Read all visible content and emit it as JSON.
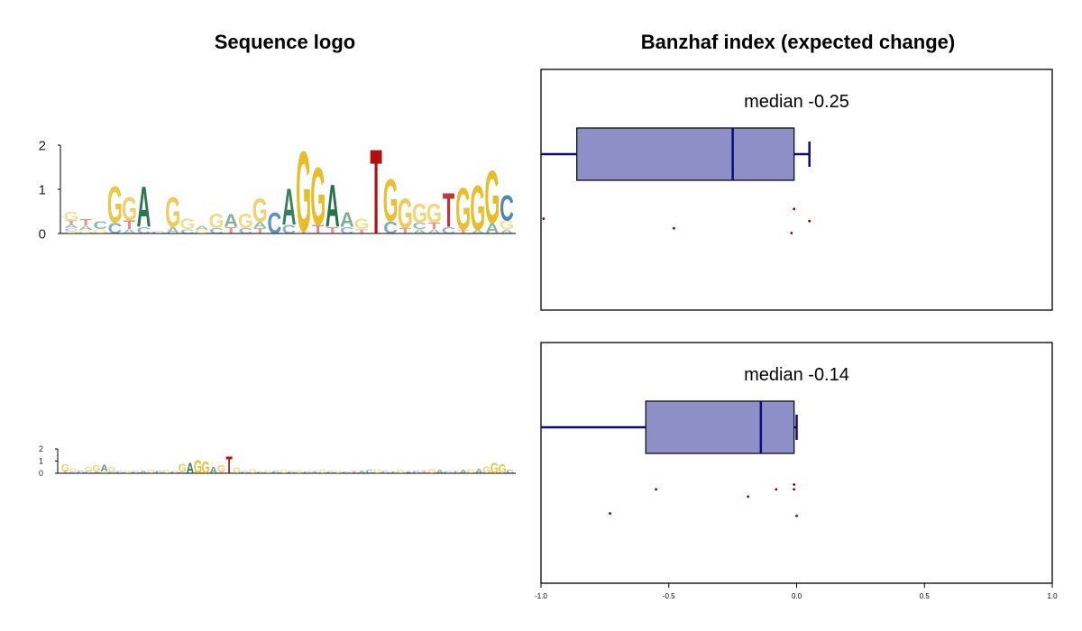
{
  "titles": {
    "left": "Sequence logo",
    "right": "Banzhaf index (expected change)"
  },
  "colors": {
    "A": "#1a6b3f",
    "C": "#0b5591",
    "G": "#e8bd2a",
    "T": "#b30f0f",
    "box_fill": "#8d8fc6",
    "box_line": "#0a0a7a",
    "point": "#8b0000"
  },
  "logo_top": {
    "yticks": [
      "0",
      "1",
      "2"
    ],
    "columns": [
      [
        [
          "G",
          0.2
        ],
        [
          "T",
          0.1
        ],
        [
          "A",
          0.08
        ],
        [
          "C",
          0.07
        ],
        [
          "G",
          0.05
        ]
      ],
      [
        [
          "T",
          0.15
        ],
        [
          "A",
          0.1
        ],
        [
          "G",
          0.08
        ]
      ],
      [
        [
          "C",
          0.18
        ],
        [
          "G",
          0.1
        ]
      ],
      [
        [
          "G",
          0.85
        ],
        [
          "C",
          0.25
        ]
      ],
      [
        [
          "G",
          0.55
        ],
        [
          "T",
          0.2
        ],
        [
          "A",
          0.1
        ]
      ],
      [
        [
          "A",
          0.95
        ],
        [
          "C",
          0.15
        ]
      ],
      [
        [
          "C",
          0.05
        ]
      ],
      [
        [
          "G",
          0.7
        ],
        [
          "A",
          0.15
        ]
      ],
      [
        [
          "G",
          0.25
        ],
        [
          "C",
          0.1
        ]
      ],
      [
        [
          "A",
          0.1
        ],
        [
          "G",
          0.08
        ]
      ],
      [
        [
          "G",
          0.35
        ],
        [
          "C",
          0.12
        ]
      ],
      [
        [
          "A",
          0.3
        ],
        [
          "T",
          0.15
        ]
      ],
      [
        [
          "G",
          0.35
        ],
        [
          "C",
          0.12
        ]
      ],
      [
        [
          "G",
          0.55
        ],
        [
          "A",
          0.15
        ],
        [
          "T",
          0.12
        ]
      ],
      [
        [
          "C",
          0.5
        ]
      ],
      [
        [
          "A",
          0.85
        ],
        [
          "C",
          0.2
        ]
      ],
      [
        [
          "G",
          1.9
        ],
        [
          "T",
          0.05
        ]
      ],
      [
        [
          "G",
          1.35
        ],
        [
          "T",
          0.2
        ]
      ],
      [
        [
          "A",
          1.0
        ],
        [
          "T",
          0.15
        ]
      ],
      [
        [
          "A",
          0.35
        ],
        [
          "C",
          0.15
        ]
      ],
      [
        [
          "G",
          0.25
        ],
        [
          "T",
          0.1
        ]
      ],
      [
        [
          "T",
          2.0
        ]
      ],
      [
        [
          "G",
          1.0
        ],
        [
          "C",
          0.28
        ]
      ],
      [
        [
          "G",
          0.7
        ],
        [
          "T",
          0.12
        ]
      ],
      [
        [
          "G",
          0.45
        ],
        [
          "C",
          0.15
        ],
        [
          "A",
          0.1
        ]
      ],
      [
        [
          "G",
          0.45
        ],
        [
          "T",
          0.15
        ],
        [
          "A",
          0.1
        ]
      ],
      [
        [
          "T",
          0.8
        ],
        [
          "C",
          0.15
        ]
      ],
      [
        [
          "G",
          1.0
        ],
        [
          "T",
          0.08
        ]
      ],
      [
        [
          "G",
          1.05
        ],
        [
          "A",
          0.08
        ]
      ],
      [
        [
          "G",
          1.25
        ],
        [
          "A",
          0.25
        ]
      ],
      [
        [
          "C",
          0.6
        ],
        [
          "G",
          0.2
        ],
        [
          "A",
          0.1
        ]
      ]
    ]
  },
  "logo_bottom": {
    "yticks": [
      "0",
      "1",
      "2"
    ],
    "columns": [
      [
        [
          "G",
          0.6
        ],
        [
          "T",
          0.2
        ]
      ],
      [
        [
          "G",
          0.3
        ],
        [
          "C",
          0.1
        ]
      ],
      [
        [
          "C",
          0.25
        ]
      ],
      [
        [
          "G",
          0.35
        ],
        [
          "C",
          0.2
        ]
      ],
      [
        [
          "G",
          0.55
        ],
        [
          "A",
          0.15
        ]
      ],
      [
        [
          "A",
          0.6
        ],
        [
          "G",
          0.15
        ]
      ],
      [
        [
          "G",
          0.4
        ],
        [
          "C",
          0.15
        ]
      ],
      [
        [
          "C",
          0.2
        ]
      ],
      [
        [
          "G",
          0.25
        ]
      ],
      [
        [
          "C",
          0.2
        ]
      ],
      [
        [
          "A",
          0.25
        ]
      ],
      [
        [
          "G",
          0.35
        ]
      ],
      [
        [
          "C",
          0.25
        ]
      ],
      [
        [
          "G",
          0.3
        ]
      ],
      [
        [
          "C",
          0.2
        ]
      ],
      [
        [
          "G",
          0.7
        ],
        [
          "C",
          0.1
        ]
      ],
      [
        [
          "A",
          0.9
        ]
      ],
      [
        [
          "G",
          1.15
        ]
      ],
      [
        [
          "G",
          1.0
        ]
      ],
      [
        [
          "A",
          0.55
        ]
      ],
      [
        [
          "G",
          0.6
        ],
        [
          "T",
          0.1
        ]
      ],
      [
        [
          "T",
          1.45
        ]
      ],
      [
        [
          "G",
          0.5
        ]
      ],
      [
        [
          "C",
          0.2
        ]
      ],
      [
        [
          "G",
          0.35
        ]
      ],
      [
        [
          "C",
          0.15
        ]
      ],
      [
        [
          "G",
          0.25
        ]
      ],
      [
        [
          "C",
          0.25
        ]
      ],
      [
        [
          "G",
          0.3
        ]
      ],
      [
        [
          "C",
          0.2
        ]
      ],
      [
        [
          "G",
          0.25
        ]
      ],
      [
        [
          "C",
          0.15
        ]
      ],
      [
        [
          "T",
          0.2
        ]
      ],
      [
        [
          "G",
          0.3
        ]
      ],
      [
        [
          "C",
          0.2
        ]
      ],
      [
        [
          "G",
          0.25
        ]
      ],
      [
        [
          "C",
          0.15
        ]
      ],
      [
        [
          "T",
          0.2
        ]
      ],
      [
        [
          "A",
          0.25
        ]
      ],
      [
        [
          "C",
          0.3
        ]
      ],
      [
        [
          "G",
          0.35
        ]
      ],
      [
        [
          "C",
          0.25
        ]
      ],
      [
        [
          "T",
          0.15
        ]
      ],
      [
        [
          "G",
          0.3
        ]
      ],
      [
        [
          "A",
          0.2
        ]
      ],
      [
        [
          "C",
          0.25
        ]
      ],
      [
        [
          "T",
          0.2
        ]
      ],
      [
        [
          "G",
          0.4
        ]
      ],
      [
        [
          "A",
          0.3
        ]
      ],
      [
        [
          "C",
          0.2
        ]
      ],
      [
        [
          "T",
          0.2
        ]
      ],
      [
        [
          "A",
          0.3
        ]
      ],
      [
        [
          "G",
          0.35
        ]
      ],
      [
        [
          "A",
          0.4
        ]
      ],
      [
        [
          "G",
          0.6
        ]
      ],
      [
        [
          "G",
          0.9
        ]
      ],
      [
        [
          "G",
          0.8
        ]
      ],
      [
        [
          "C",
          0.3
        ]
      ]
    ]
  },
  "chart_data": [
    {
      "type": "boxplot",
      "title": "median -0.25",
      "xlim": [
        -1.0,
        1.0
      ],
      "box": {
        "whisker_low": -1.0,
        "q1": -0.86,
        "median": -0.25,
        "q3": -0.01,
        "whisker_high": 0.05
      },
      "points": [
        {
          "x": -0.99,
          "y": 0.62
        },
        {
          "x": -0.48,
          "y": 0.66
        },
        {
          "x": -0.01,
          "y": 0.58
        },
        {
          "x": -0.02,
          "y": 0.68
        },
        {
          "x": 0.05,
          "y": 0.63
        }
      ]
    },
    {
      "type": "boxplot",
      "title": "median -0.14",
      "xlim": [
        -1.0,
        1.0
      ],
      "xticks": [
        "-1.0",
        "-0.5",
        "0.0",
        "0.5",
        "1.0"
      ],
      "box": {
        "whisker_low": -1.0,
        "q1": -0.59,
        "median": -0.14,
        "q3": -0.01,
        "whisker_high": 0.0
      },
      "points": [
        {
          "x": -0.73,
          "y": 0.71
        },
        {
          "x": -0.55,
          "y": 0.61
        },
        {
          "x": -0.19,
          "y": 0.64
        },
        {
          "x": -0.08,
          "y": 0.61
        },
        {
          "x": -0.01,
          "y": 0.59
        },
        {
          "x": -0.01,
          "y": 0.61
        },
        {
          "x": 0.0,
          "y": 0.72
        }
      ]
    }
  ]
}
